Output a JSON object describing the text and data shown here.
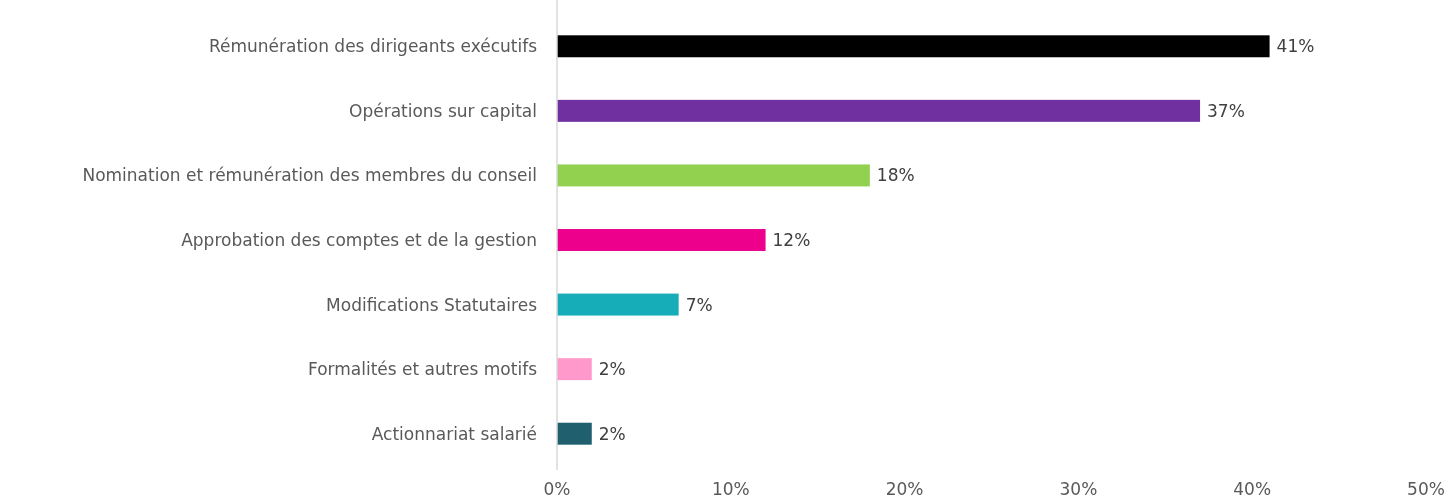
{
  "chart_data": {
    "type": "bar",
    "orientation": "horizontal",
    "categories": [
      "Rémunération des dirigeants exécutifs",
      "Opérations sur capital",
      "Nomination et rémunération des membres du conseil",
      "Approbation des comptes et de la gestion",
      "Modifications Statutaires",
      "Formalités et autres motifs",
      "Actionnariat salarié"
    ],
    "values": [
      41,
      37,
      18,
      12,
      7,
      2,
      2
    ],
    "colors": [
      "#000000",
      "#7030a0",
      "#92d050",
      "#ec008c",
      "#17adb8",
      "#ff99cc",
      "#1f5f6e"
    ],
    "value_labels": [
      "41%",
      "37%",
      "18%",
      "12%",
      "7%",
      "2%",
      "2%"
    ],
    "xlim": [
      0,
      50
    ],
    "xticks": [
      {
        "value": 0,
        "label": "0%"
      },
      {
        "value": 10,
        "label": "10%"
      },
      {
        "value": 20,
        "label": "20%"
      },
      {
        "value": 30,
        "label": "30%"
      },
      {
        "value": 40,
        "label": "40%"
      },
      {
        "value": 50,
        "label": "50%"
      }
    ],
    "grid": false
  }
}
